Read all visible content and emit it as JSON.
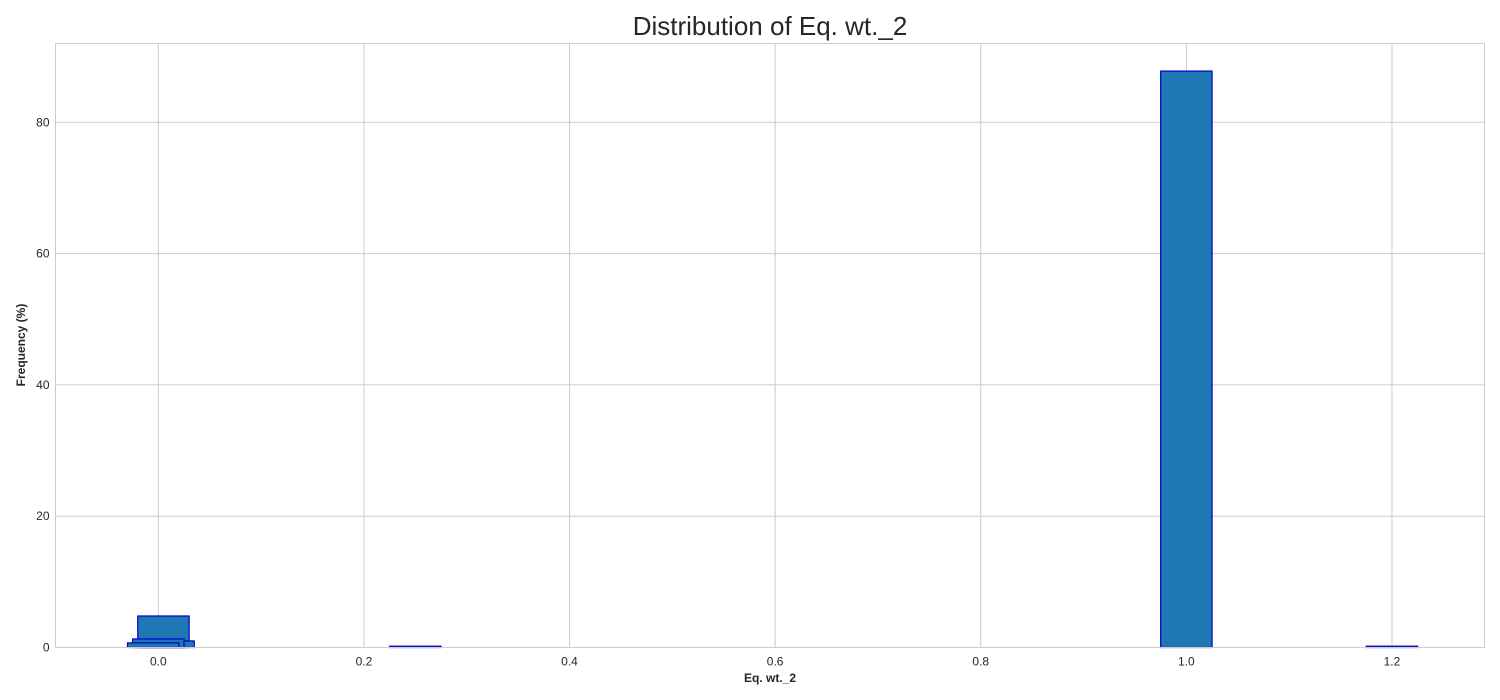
{
  "chart_data": {
    "type": "bar",
    "title": "Distribution of Eq. wt._2",
    "xlabel": "Eq. wt._2",
    "ylabel": "Frequency (%)",
    "xlim": [
      -0.1,
      1.29
    ],
    "ylim": [
      0,
      92
    ],
    "grid": true,
    "x_ticks": [
      0.0,
      0.2,
      0.4,
      0.6,
      0.8,
      1.0,
      1.2
    ],
    "x_tick_labels": [
      "0.0",
      "0.2",
      "0.4",
      "0.6",
      "0.8",
      "1.0",
      "1.2"
    ],
    "y_ticks": [
      0,
      20,
      40,
      60,
      80
    ],
    "y_tick_labels": [
      "0",
      "20",
      "40",
      "60",
      "80"
    ],
    "bar_color": "#1f77b4",
    "edge_color": "#0000cc",
    "bars": [
      {
        "x": 0.005,
        "width": 0.05,
        "value": 4.8
      },
      {
        "x": 0.01,
        "width": 0.05,
        "value": 1.0
      },
      {
        "x": 0.0,
        "width": 0.05,
        "value": 1.3
      },
      {
        "x": -0.005,
        "width": 0.05,
        "value": 0.7
      },
      {
        "x": 0.25,
        "width": 0.05,
        "value": 0.2
      },
      {
        "x": 1.0,
        "width": 0.05,
        "value": 87.8
      },
      {
        "x": 1.2,
        "width": 0.05,
        "value": 0.2
      }
    ]
  }
}
